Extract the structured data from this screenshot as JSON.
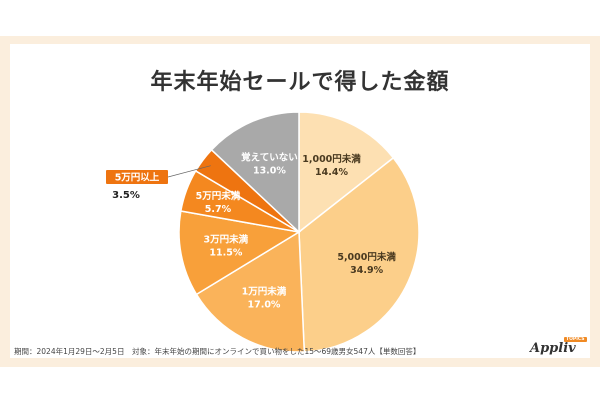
{
  "title": "年末年始セールで得した金額",
  "footnote": "期間：2024年1月29日～2月5日　対象：年末年始の期間にオンラインで買い物をした15～69歳男女547人【単数回答】",
  "logo": {
    "text": "Appliv",
    "badge": "TOPICS"
  },
  "chart_data": {
    "type": "pie",
    "title": "年末年始セールで得した金額",
    "start": "12 o'clock, clockwise",
    "slices": [
      {
        "label": "1,000円未満",
        "value": 14.4,
        "value_label": "14.4%",
        "color": "#fde0b2",
        "text_color": "#4a3a20"
      },
      {
        "label": "5,000円未満",
        "value": 34.9,
        "value_label": "34.9%",
        "color": "#fccf8a",
        "text_color": "#4a3a20"
      },
      {
        "label": "1万円未満",
        "value": 17.0,
        "value_label": "17.0%",
        "color": "#fab35a",
        "text_color": "#ffffff"
      },
      {
        "label": "3万円未満",
        "value": 11.5,
        "value_label": "11.5%",
        "color": "#f8a03a",
        "text_color": "#ffffff"
      },
      {
        "label": "5万円未満",
        "value": 5.7,
        "value_label": "5.7%",
        "color": "#f4881f",
        "text_color": "#ffffff"
      },
      {
        "label": "5万円以上",
        "value": 3.5,
        "value_label": "3.5%",
        "color": "#ee7410",
        "text_color": "#ffffff",
        "callout": true
      },
      {
        "label": "覚えていない",
        "value": 13.0,
        "value_label": "13.0%",
        "color": "#a9a9a9",
        "text_color": "#ffffff"
      }
    ]
  }
}
